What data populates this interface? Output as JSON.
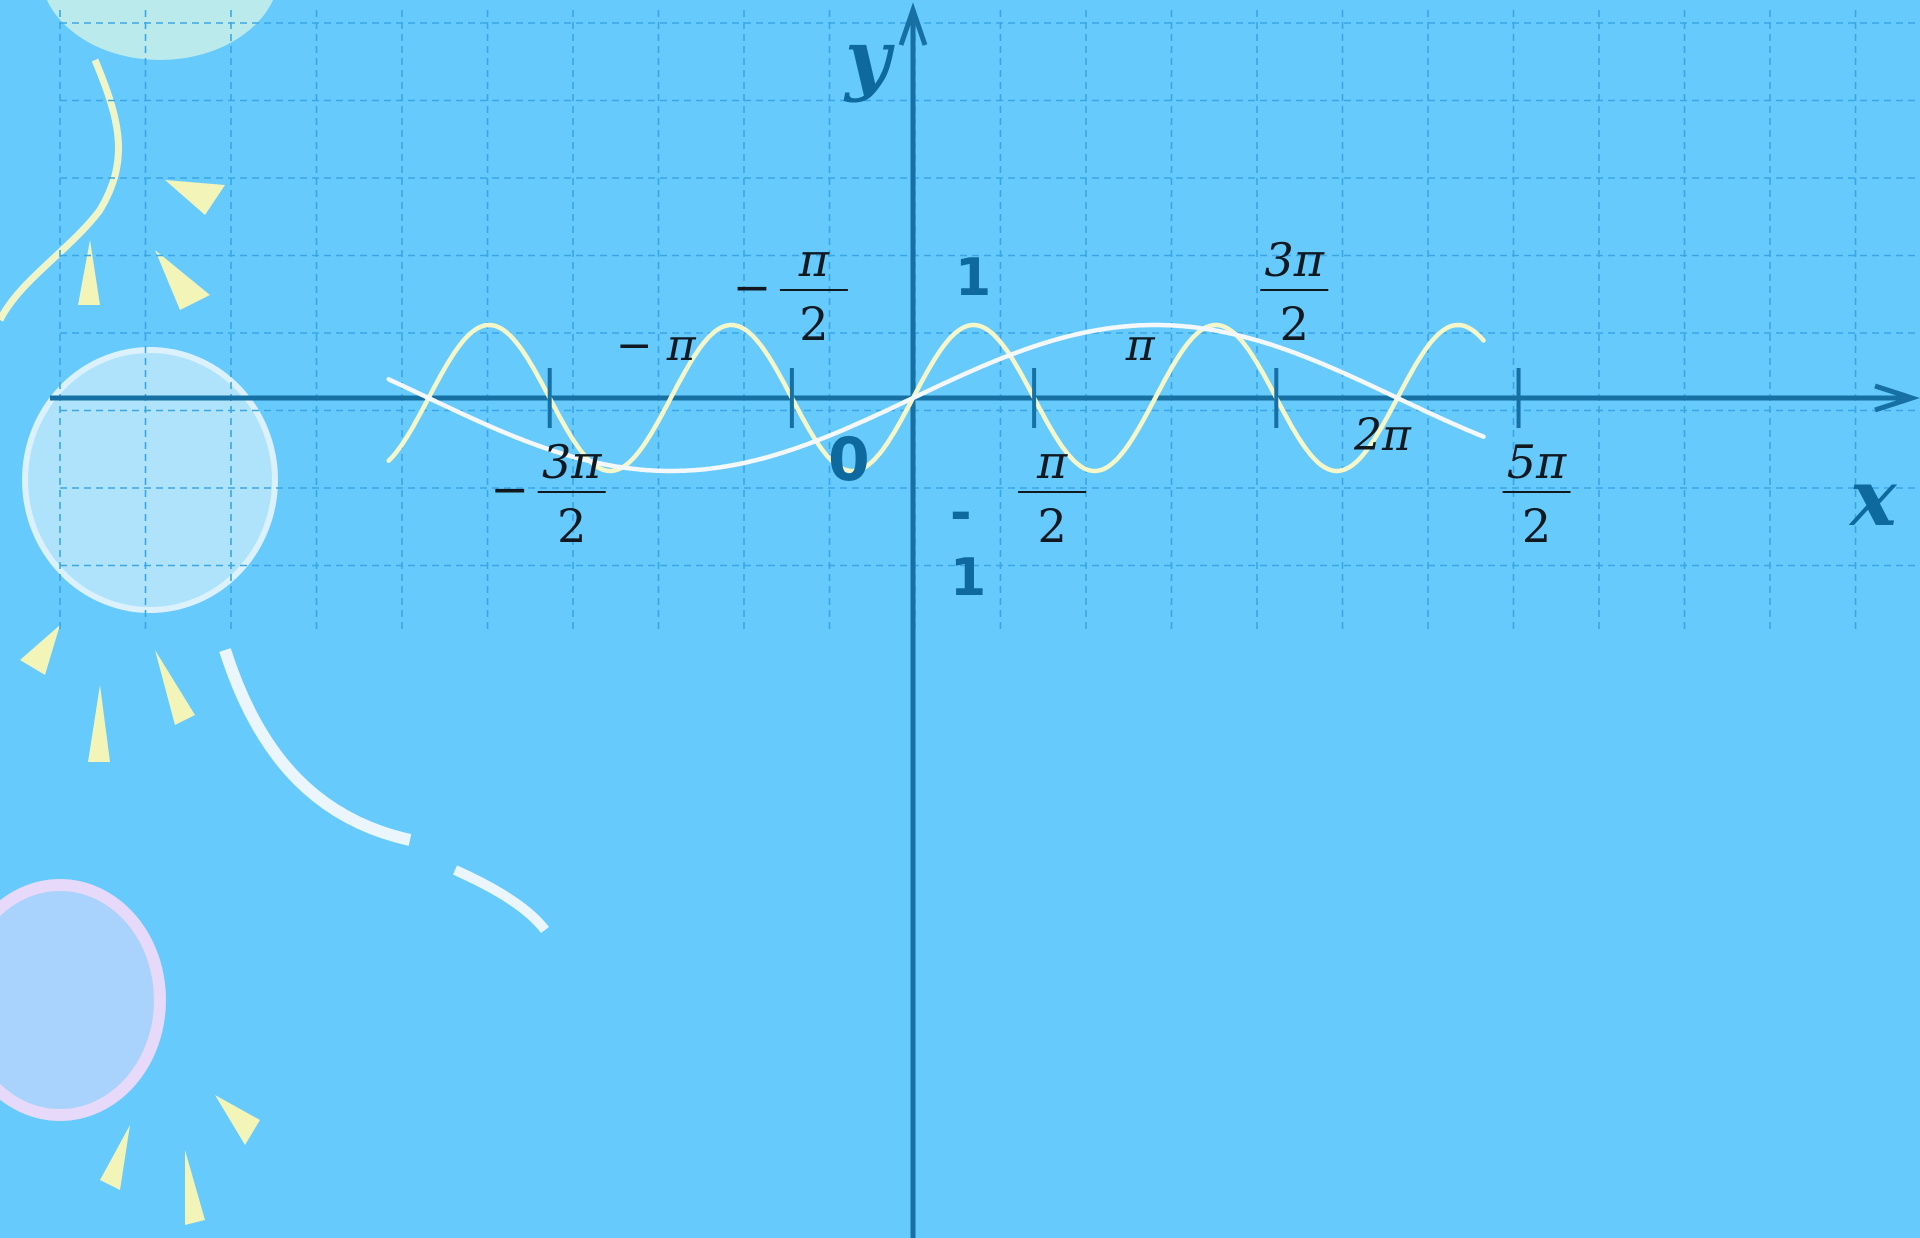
{
  "colors": {
    "background": "#66CAFD",
    "grid": "#3AA6E6",
    "axis": "#1670A4",
    "curve_a": "#F6F7C8",
    "curve_b": "#F4F8FB",
    "text": "#101820",
    "axis_label": "#0E6A9E"
  },
  "decorations": [
    "balloon-yellow",
    "balloon-white",
    "balloon-pink",
    "sparkle-rays",
    "balloon-string"
  ],
  "chart_data": {
    "type": "line",
    "xlabel": "x",
    "ylabel": "y",
    "xlim": [
      -6.8,
      7.4
    ],
    "ylim": [
      -1.9,
      4.8
    ],
    "grid": true,
    "origin_label": "0",
    "y_ticks": [
      {
        "value": 1,
        "label": "1"
      },
      {
        "value": -1,
        "label": "-1",
        "parts": [
          "-",
          "1"
        ]
      }
    ],
    "x_ticks": [
      {
        "value": -4.712,
        "label": "-3π/2",
        "sign": "−",
        "num": "3π",
        "den": "2",
        "side": "below"
      },
      {
        "value": -3.1416,
        "label": "-π",
        "text": "− π",
        "side": "above"
      },
      {
        "value": -1.5708,
        "label": "-π/2",
        "sign": "−",
        "num": "π",
        "den": "2",
        "side": "above"
      },
      {
        "value": 1.5708,
        "label": "π/2",
        "sign": "",
        "num": "π",
        "den": "2",
        "side": "below"
      },
      {
        "value": 3.1416,
        "label": "π",
        "text": "π",
        "side": "above"
      },
      {
        "value": 4.712,
        "label": "3π/2",
        "sign": "",
        "num": "3π",
        "den": "2",
        "side": "above"
      },
      {
        "value": 6.2832,
        "label": "2π",
        "text": "2π",
        "side": "below"
      },
      {
        "value": 7.854,
        "label": "5π/2",
        "sign": "",
        "num": "5π",
        "den": "2",
        "side": "below"
      }
    ],
    "series": [
      {
        "color": "#F6F7C8",
        "function": "sin(2x)",
        "x": [
          -6.8,
          -6.0,
          -5.5,
          -5.0,
          -4.5,
          -4.0,
          -3.5,
          -3.0,
          -2.5,
          -2.0,
          -1.5,
          -1.0,
          -0.5,
          0,
          0.5,
          1.0,
          1.5,
          2.0,
          2.5,
          3.0,
          3.5,
          4.0,
          4.5,
          5.0,
          5.5,
          6.0,
          6.5,
          7.0,
          7.4
        ],
        "y": [
          -0.87,
          0.54,
          1.0,
          0.54,
          -0.41,
          -0.99,
          -0.66,
          0.28,
          0.96,
          0.76,
          -0.14,
          -0.91,
          -0.84,
          0.0,
          0.84,
          0.91,
          0.14,
          -0.76,
          -0.96,
          -0.28,
          0.66,
          0.99,
          0.41,
          -0.54,
          -1.0,
          -0.54,
          0.42,
          0.99,
          0.8
        ]
      },
      {
        "color": "#F4F8FB",
        "function": "sin(x/2)",
        "x": [
          -6.8,
          -6.0,
          -5.5,
          -5.0,
          -4.5,
          -4.0,
          -3.5,
          -3.0,
          -2.5,
          -2.0,
          -1.5,
          -1.0,
          -0.5,
          0,
          0.5,
          1.0,
          1.5,
          2.0,
          2.5,
          3.0,
          3.5,
          4.0,
          4.5,
          5.0,
          5.5,
          6.0,
          6.5,
          7.0,
          7.4
        ],
        "y": [
          0.26,
          -0.14,
          -0.38,
          -0.6,
          -0.78,
          -0.91,
          -0.98,
          -1.0,
          -0.95,
          -0.84,
          -0.68,
          -0.48,
          -0.25,
          0.0,
          0.25,
          0.48,
          0.68,
          0.84,
          0.95,
          1.0,
          0.98,
          0.91,
          0.78,
          0.6,
          0.38,
          0.14,
          -0.11,
          -0.35,
          -0.52
        ]
      }
    ]
  }
}
